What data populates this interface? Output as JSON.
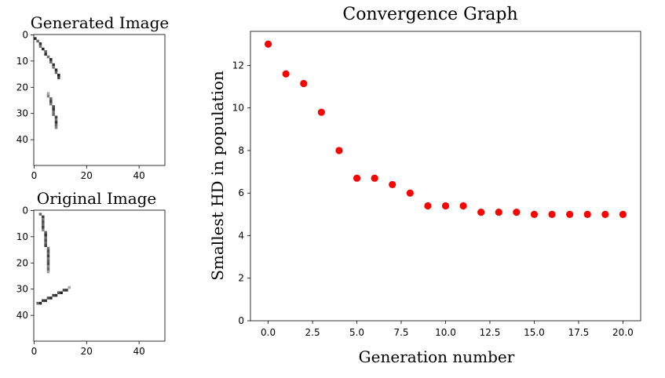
{
  "chart_data": [
    {
      "type": "heatmap",
      "title": "Generated Image",
      "xlim": [
        0,
        50
      ],
      "ylim": [
        50,
        0
      ],
      "xticks": [
        0,
        20,
        40
      ],
      "yticks": [
        0,
        10,
        20,
        30,
        40
      ],
      "pixels": [
        [
          0,
          1,
          0.85
        ],
        [
          1,
          2,
          0.6
        ],
        [
          2,
          3,
          0.8
        ],
        [
          2,
          4,
          0.55
        ],
        [
          3,
          5,
          0.85
        ],
        [
          4,
          6,
          0.6
        ],
        [
          4,
          7,
          0.8
        ],
        [
          5,
          8,
          0.55
        ],
        [
          6,
          9,
          0.85
        ],
        [
          6,
          10,
          0.6
        ],
        [
          7,
          11,
          0.8
        ],
        [
          7,
          12,
          0.55
        ],
        [
          8,
          13,
          0.85
        ],
        [
          8,
          14,
          0.6
        ],
        [
          9,
          15,
          0.9
        ],
        [
          9,
          16,
          0.7
        ],
        [
          5,
          22,
          0.35
        ],
        [
          5,
          23,
          0.5
        ],
        [
          6,
          24,
          0.6
        ],
        [
          6,
          25,
          0.75
        ],
        [
          6,
          26,
          0.55
        ],
        [
          7,
          27,
          0.7
        ],
        [
          7,
          28,
          0.8
        ],
        [
          7,
          29,
          0.55
        ],
        [
          7,
          30,
          0.6
        ],
        [
          8,
          31,
          0.75
        ],
        [
          8,
          32,
          0.55
        ],
        [
          8,
          33,
          0.8
        ],
        [
          8,
          34,
          0.6
        ],
        [
          8,
          35,
          0.5
        ]
      ]
    },
    {
      "type": "heatmap",
      "title": "Original Image",
      "xlim": [
        0,
        50
      ],
      "ylim": [
        50,
        0
      ],
      "xticks": [
        0,
        20,
        40
      ],
      "yticks": [
        0,
        10,
        20,
        30,
        40
      ],
      "pixels": [
        [
          2,
          1,
          0.6
        ],
        [
          3,
          2,
          0.75
        ],
        [
          3,
          3,
          0.55
        ],
        [
          3,
          4,
          0.7
        ],
        [
          3,
          5,
          0.6
        ],
        [
          3,
          6,
          0.75
        ],
        [
          3,
          7,
          0.5
        ],
        [
          4,
          8,
          0.65
        ],
        [
          4,
          9,
          0.8
        ],
        [
          4,
          10,
          0.55
        ],
        [
          4,
          11,
          0.7
        ],
        [
          4,
          12,
          0.6
        ],
        [
          4,
          13,
          0.75
        ],
        [
          5,
          14,
          0.55
        ],
        [
          5,
          15,
          0.7
        ],
        [
          5,
          16,
          0.6
        ],
        [
          5,
          17,
          0.75
        ],
        [
          5,
          18,
          0.55
        ],
        [
          5,
          19,
          0.65
        ],
        [
          5,
          20,
          0.7
        ],
        [
          5,
          21,
          0.5
        ],
        [
          5,
          22,
          0.6
        ],
        [
          5,
          23,
          0.4
        ],
        [
          13,
          29,
          0.35
        ],
        [
          12,
          30,
          0.8
        ],
        [
          11,
          30,
          0.75
        ],
        [
          10,
          31,
          0.85
        ],
        [
          9,
          31,
          0.7
        ],
        [
          8,
          32,
          0.8
        ],
        [
          7,
          32,
          0.75
        ],
        [
          6,
          33,
          0.85
        ],
        [
          5,
          33,
          0.7
        ],
        [
          4,
          34,
          0.8
        ],
        [
          3,
          34,
          0.75
        ],
        [
          2,
          35,
          0.85
        ],
        [
          1,
          35,
          0.6
        ]
      ]
    },
    {
      "type": "scatter",
      "title": "Convergence Graph",
      "xlabel": "Generation number",
      "ylabel": "Smallest HD in population",
      "xlim": [
        -1,
        21
      ],
      "ylim": [
        0,
        13.6
      ],
      "xticks": [
        "0.0",
        "2.5",
        "5.0",
        "7.5",
        "10.0",
        "12.5",
        "15.0",
        "17.5",
        "20.0"
      ],
      "yticks": [
        "0",
        "2",
        "4",
        "6",
        "8",
        "10",
        "12"
      ],
      "color": "#ff0000",
      "x": [
        0,
        1,
        2,
        3,
        4,
        5,
        6,
        7,
        8,
        9,
        10,
        11,
        12,
        13,
        14,
        15,
        16,
        17,
        18,
        19,
        20
      ],
      "y": [
        13.0,
        11.6,
        11.15,
        9.8,
        8.0,
        6.7,
        6.7,
        6.4,
        6.0,
        5.4,
        5.4,
        5.4,
        5.1,
        5.1,
        5.1,
        5.0,
        5.0,
        5.0,
        5.0,
        5.0,
        5.0
      ]
    }
  ]
}
